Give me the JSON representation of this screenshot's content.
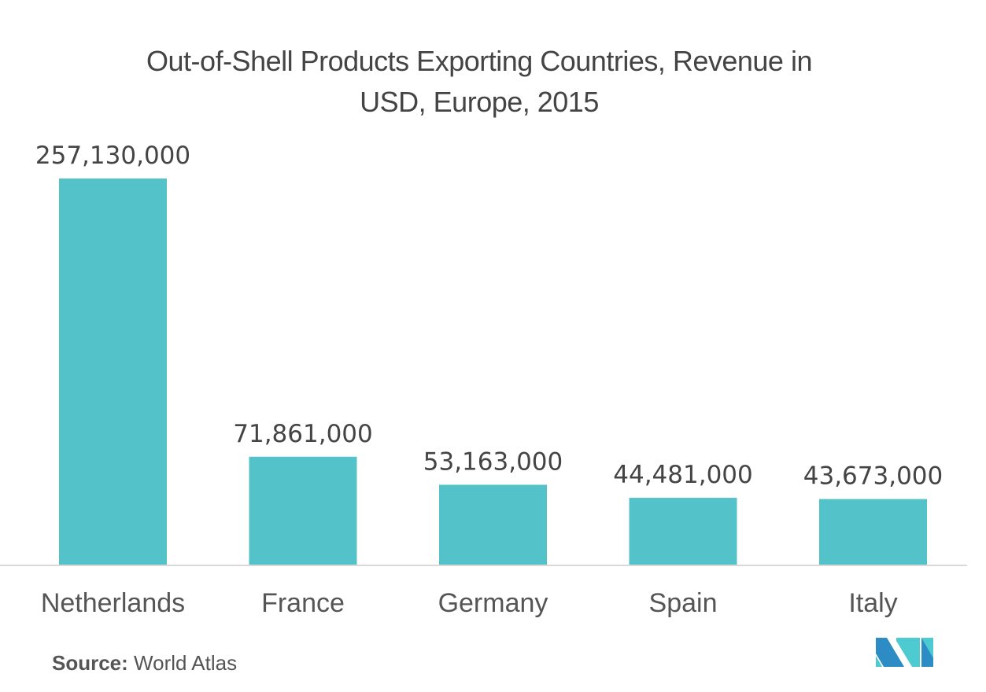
{
  "chart_data": {
    "type": "bar",
    "title": "Out-of-Shell Products Exporting Countries, Revenue in USD, Europe, 2015",
    "title_lines": [
      "Out-of-Shell Products Exporting Countries, Revenue in",
      "USD, Europe, 2015"
    ],
    "categories": [
      "Netherlands",
      "France",
      "Germany",
      "Spain",
      "Italy"
    ],
    "values": [
      257130000,
      71861000,
      53163000,
      44481000,
      43673000
    ],
    "value_labels": [
      "257,130,000",
      "71,861,000",
      "53,163,000",
      "44,481,000",
      "43,673,000"
    ],
    "xlabel": "",
    "ylabel": "",
    "ylim": [
      0,
      257130000
    ],
    "grid": false,
    "legend": "none",
    "bar_color": "#53c3c9",
    "axis_color": "#d9d9d9"
  },
  "footer": {
    "source_label": "Source:",
    "source_value": "World Atlas"
  },
  "logo": {
    "name": "mordor-intelligence-logo",
    "dark_color": "#2e8cc4",
    "light_color": "#4ecbd1"
  }
}
